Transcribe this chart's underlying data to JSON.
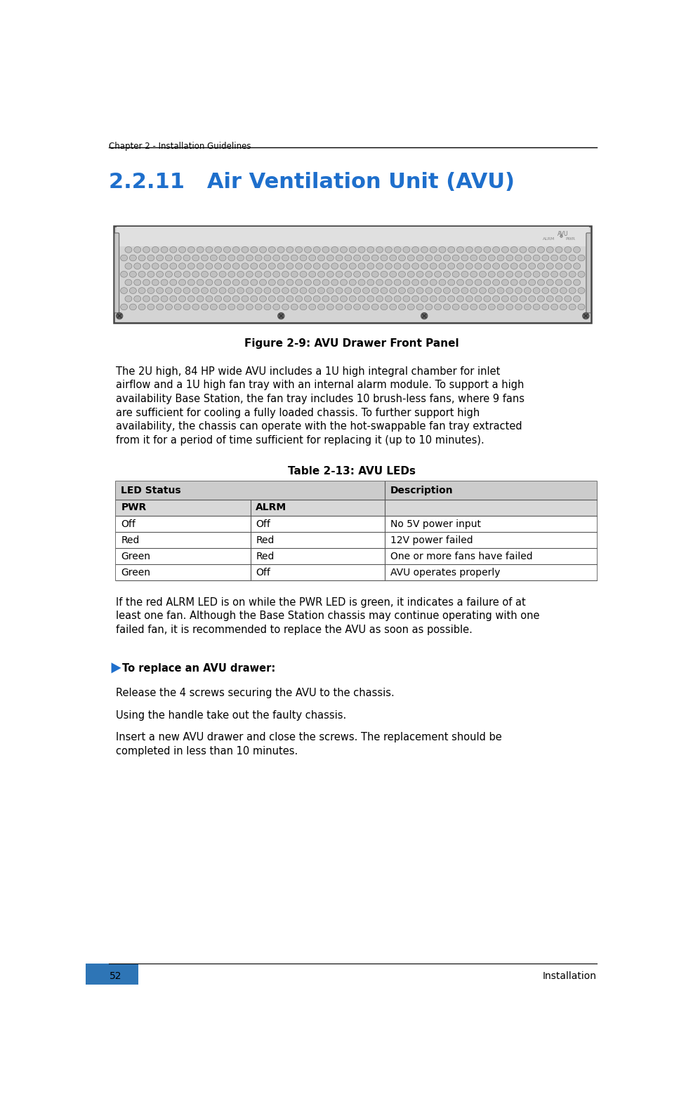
{
  "page_width": 9.77,
  "page_height": 15.76,
  "bg_color": "#ffffff",
  "header_text": "Chapter 2 - Installation Guidelines",
  "header_font_size": 8.5,
  "section_title": "2.2.11   Air Ventilation Unit (AVU)",
  "section_title_color": "#1e6fcc",
  "section_title_font_size": 22,
  "figure_caption": "Figure 2-9: AVU Drawer Front Panel",
  "body_text_1_lines": [
    "The 2U high, 84 HP wide AVU includes a 1U high integral chamber for inlet",
    "airflow and a 1U high fan tray with an internal alarm module. To support a high",
    "availability Base Station, the fan tray includes 10 brush-less fans, where 9 fans",
    "are sufficient for cooling a fully loaded chassis. To further support high",
    "availability, the chassis can operate with the hot-swappable fan tray extracted",
    "from it for a period of time sufficient for replacing it (up to 10 minutes)."
  ],
  "table_title": "Table 2-13: AVU LEDs",
  "table_rows": [
    [
      "Off",
      "Off",
      "No 5V power input"
    ],
    [
      "Red",
      "Red",
      "12V power failed"
    ],
    [
      "Green",
      "Red",
      "One or more fans have failed"
    ],
    [
      "Green",
      "Off",
      "AVU operates properly"
    ]
  ],
  "body_text_2_lines": [
    "If the red ALRM LED is on while the PWR LED is green, it indicates a failure of at",
    "least one fan. Although the Base Station chassis may continue operating with one",
    "failed fan, it is recommended to replace the AVU as soon as possible."
  ],
  "arrow_text": "To replace an AVU drawer:",
  "steps": [
    "Release the 4 screws securing the AVU to the chassis.",
    "Using the handle take out the faulty chassis.",
    "Insert a new AVU drawer and close the screws. The replacement should be",
    "completed in less than 10 minutes."
  ],
  "footer_page": "52",
  "footer_right": "Installation",
  "footer_color": "#2e75b6",
  "body_font_size": 10.5,
  "table_font_size": 10,
  "header_color": "#cccccc",
  "subheader_color": "#d8d8d8",
  "table_border_color": "#555555"
}
